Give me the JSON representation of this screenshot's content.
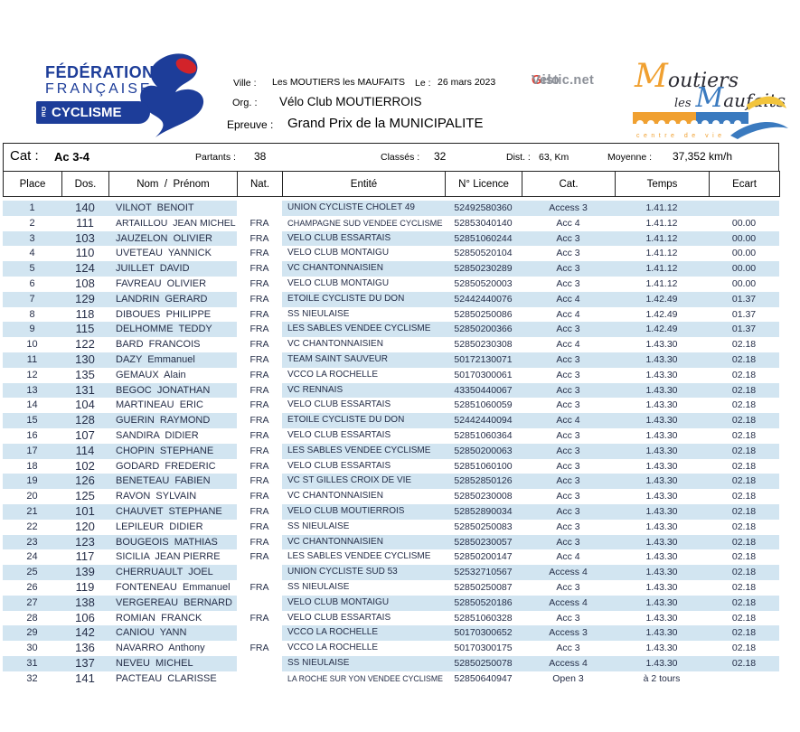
{
  "header": {
    "ffc": {
      "line1": "FÉDÉRATION",
      "line2": "FRANÇAISE",
      "de": "DE",
      "line3": "CYCLISME"
    },
    "ville_label": "Ville :",
    "ville_value": "Les MOUTIERS les MAUFAITS",
    "date_label": "Le :",
    "date_value": "26 mars 2023",
    "velogistic_pre": "Velo",
    "velogistic_g": "G",
    "velogistic_post": "istic.net",
    "org_label": "Org. :",
    "org_value": "Vélo Club MOUTIERROIS",
    "epreuve_label": "Epreuve :",
    "epreuve_value": "Grand Prix de la MUNICIPALITE",
    "moutiers": {
      "word1_initial": "M",
      "word1_rest": "outiers",
      "word2": "les",
      "word3_initial": "M",
      "word3_rest": "aufaits",
      "tagline": "centre de vie"
    }
  },
  "summary": {
    "cat_label": "Cat :",
    "cat_value": "Ac 3-4",
    "partants_label": "Partants :",
    "partants_value": "38",
    "classes_label": "Classés :",
    "classes_value": "32",
    "dist_label": "Dist. :",
    "dist_value": "63, Km",
    "moyenne_label": "Moyenne :",
    "moyenne_value": "37,352 km/h"
  },
  "table": {
    "columns": [
      "Place",
      "Dos.",
      "Nom  /  Prénom",
      "Nat.",
      "Entité",
      "N° Licence",
      "Cat.",
      "Temps",
      "Ecart"
    ],
    "rows": [
      [
        "1",
        "140",
        "VILNOT  BENOIT",
        "",
        "UNION CYCLISTE CHOLET 49",
        "52492580360",
        "Access 3",
        "1.41.12",
        ""
      ],
      [
        "2",
        "111",
        "ARTAILLOU  JEAN MICHEL",
        "FRA",
        "CHAMPAGNE SUD VENDEE CYCLISME",
        "52853040140",
        "Acc 4",
        "1.41.12",
        "00.00"
      ],
      [
        "3",
        "103",
        "JAUZELON  OLIVIER",
        "FRA",
        "VELO CLUB ESSARTAIS",
        "52851060244",
        "Acc 3",
        "1.41.12",
        "00.00"
      ],
      [
        "4",
        "110",
        "UVETEAU  YANNICK",
        "FRA",
        "VELO CLUB MONTAIGU",
        "52850520104",
        "Acc 3",
        "1.41.12",
        "00.00"
      ],
      [
        "5",
        "124",
        "JUILLET  DAVID",
        "FRA",
        "VC CHANTONNAISIEN",
        "52850230289",
        "Acc 3",
        "1.41.12",
        "00.00"
      ],
      [
        "6",
        "108",
        "FAVREAU  OLIVIER",
        "FRA",
        "VELO CLUB MONTAIGU",
        "52850520003",
        "Acc 3",
        "1.41.12",
        "00.00"
      ],
      [
        "7",
        "129",
        "LANDRIN  GERARD",
        "FRA",
        "ETOILE CYCLISTE DU DON",
        "52442440076",
        "Acc 4",
        "1.42.49",
        "01.37"
      ],
      [
        "8",
        "118",
        "DIBOUES  PHILIPPE",
        "FRA",
        "SS NIEULAISE",
        "52850250086",
        "Acc 4",
        "1.42.49",
        "01.37"
      ],
      [
        "9",
        "115",
        "DELHOMME  TEDDY",
        "FRA",
        "LES SABLES VENDEE CYCLISME",
        "52850200366",
        "Acc 3",
        "1.42.49",
        "01.37"
      ],
      [
        "10",
        "122",
        "BARD  FRANCOIS",
        "FRA",
        "VC CHANTONNAISIEN",
        "52850230308",
        "Acc 4",
        "1.43.30",
        "02.18"
      ],
      [
        "11",
        "130",
        "DAZY  Emmanuel",
        "FRA",
        "TEAM SAINT SAUVEUR",
        "50172130071",
        "Acc 3",
        "1.43.30",
        "02.18"
      ],
      [
        "12",
        "135",
        "GEMAUX  Alain",
        "FRA",
        "VCCO LA ROCHELLE",
        "50170300061",
        "Acc 3",
        "1.43.30",
        "02.18"
      ],
      [
        "13",
        "131",
        "BEGOC  JONATHAN",
        "FRA",
        "VC RENNAIS",
        "43350440067",
        "Acc 3",
        "1.43.30",
        "02.18"
      ],
      [
        "14",
        "104",
        "MARTINEAU  ERIC",
        "FRA",
        "VELO CLUB ESSARTAIS",
        "52851060059",
        "Acc 3",
        "1.43.30",
        "02.18"
      ],
      [
        "15",
        "128",
        "GUERIN  RAYMOND",
        "FRA",
        "ETOILE CYCLISTE DU DON",
        "52442440094",
        "Acc 4",
        "1.43.30",
        "02.18"
      ],
      [
        "16",
        "107",
        "SANDIRA  DIDIER",
        "FRA",
        "VELO CLUB ESSARTAIS",
        "52851060364",
        "Acc 3",
        "1.43.30",
        "02.18"
      ],
      [
        "17",
        "114",
        "CHOPIN  STEPHANE",
        "FRA",
        "LES SABLES VENDEE CYCLISME",
        "52850200063",
        "Acc 3",
        "1.43.30",
        "02.18"
      ],
      [
        "18",
        "102",
        "GODARD  FREDERIC",
        "FRA",
        "VELO CLUB ESSARTAIS",
        "52851060100",
        "Acc 3",
        "1.43.30",
        "02.18"
      ],
      [
        "19",
        "126",
        "BENETEAU  FABIEN",
        "FRA",
        "VC ST GILLES CROIX DE VIE",
        "52852850126",
        "Acc 3",
        "1.43.30",
        "02.18"
      ],
      [
        "20",
        "125",
        "RAVON  SYLVAIN",
        "FRA",
        "VC CHANTONNAISIEN",
        "52850230008",
        "Acc 3",
        "1.43.30",
        "02.18"
      ],
      [
        "21",
        "101",
        "CHAUVET  STEPHANE",
        "FRA",
        "VELO CLUB MOUTIERROIS",
        "52852890034",
        "Acc 3",
        "1.43.30",
        "02.18"
      ],
      [
        "22",
        "120",
        "LEPILEUR  DIDIER",
        "FRA",
        "SS NIEULAISE",
        "52850250083",
        "Acc 3",
        "1.43.30",
        "02.18"
      ],
      [
        "23",
        "123",
        "BOUGEOIS  MATHIAS",
        "FRA",
        "VC CHANTONNAISIEN",
        "52850230057",
        "Acc 3",
        "1.43.30",
        "02.18"
      ],
      [
        "24",
        "117",
        "SICILIA  JEAN PIERRE",
        "FRA",
        "LES SABLES VENDEE CYCLISME",
        "52850200147",
        "Acc 4",
        "1.43.30",
        "02.18"
      ],
      [
        "25",
        "139",
        "CHERRUAULT  JOEL",
        "",
        "UNION CYCLISTE SUD 53",
        "52532710567",
        "Access 4",
        "1.43.30",
        "02.18"
      ],
      [
        "26",
        "119",
        "FONTENEAU  Emmanuel",
        "FRA",
        "SS NIEULAISE",
        "52850250087",
        "Acc 3",
        "1.43.30",
        "02.18"
      ],
      [
        "27",
        "138",
        "VERGEREAU  BERNARD",
        "",
        "VELO CLUB MONTAIGU",
        "52850520186",
        "Access 4",
        "1.43.30",
        "02.18"
      ],
      [
        "28",
        "106",
        "ROMIAN  FRANCK",
        "FRA",
        "VELO CLUB ESSARTAIS",
        "52851060328",
        "Acc 3",
        "1.43.30",
        "02.18"
      ],
      [
        "29",
        "142",
        "CANIOU  YANN",
        "",
        "VCCO LA ROCHELLE",
        "50170300652",
        "Access 3",
        "1.43.30",
        "02.18"
      ],
      [
        "30",
        "136",
        "NAVARRO  Anthony",
        "FRA",
        "VCCO LA ROCHELLE",
        "50170300175",
        "Acc 3",
        "1.43.30",
        "02.18"
      ],
      [
        "31",
        "137",
        "NEVEU  MICHEL",
        "",
        "SS NIEULAISE",
        "52850250078",
        "Access 4",
        "1.43.30",
        "02.18"
      ],
      [
        "32",
        "141",
        "PACTEAU  CLARISSE",
        "",
        "LA ROCHE SUR YON VENDEE CYCLISME",
        "52850640947",
        "Open 3",
        "à 2 tours",
        ""
      ]
    ]
  },
  "colors": {
    "stripe": "#d2e5f1",
    "ffc_blue": "#1d3d99",
    "ffc_red": "#d2232a",
    "moutiers_orange": "#f0a030",
    "moutiers_blue": "#3a7abf",
    "moutiers_yellow": "#f2c43c",
    "velogistic_gray": "#8d9199",
    "velogistic_red": "#e23a2e"
  }
}
